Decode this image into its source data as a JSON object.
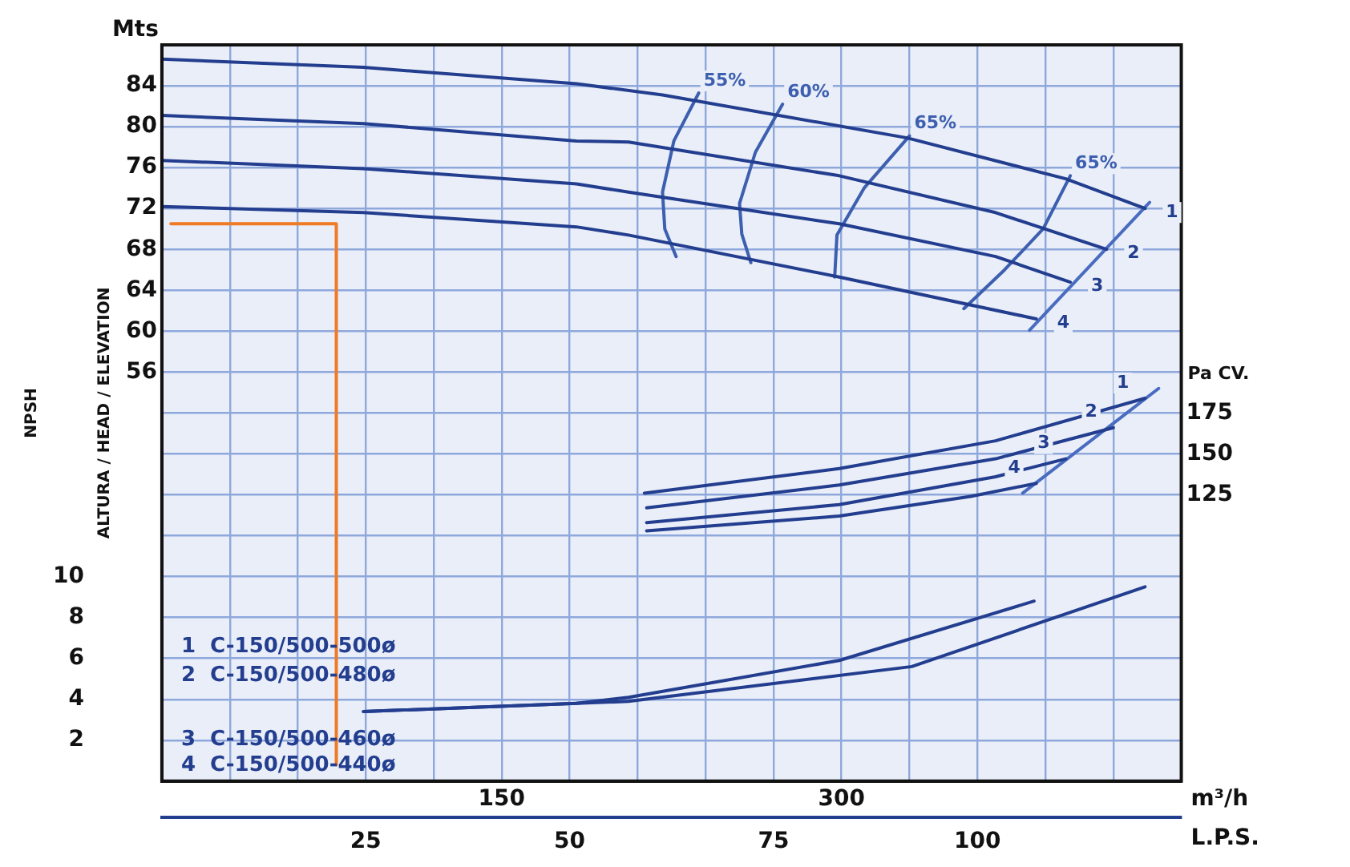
{
  "chart_data": {
    "type": "line",
    "ylabel": "ALTURA / HEAD / ELEVATION",
    "y2label": "Pa CV.",
    "y3label": "NPSH",
    "xlabel": "m³/h",
    "x2label": "L.P.S.",
    "xlim": [
      0,
      450
    ],
    "xticks": [
      {
        "value": 30,
        "label": null
      },
      {
        "value": 60,
        "label": null
      },
      {
        "value": 90,
        "label": null
      },
      {
        "value": 120,
        "label": null
      },
      150,
      {
        "value": 180,
        "label": null
      },
      {
        "value": 210,
        "label": null
      },
      {
        "value": 240,
        "label": null
      },
      {
        "value": 270,
        "label": null
      },
      300,
      {
        "value": 330,
        "label": null
      },
      {
        "value": 360,
        "label": null
      },
      {
        "value": 390,
        "label": null
      },
      {
        "value": 420,
        "label": null
      }
    ],
    "x2lim": [
      0,
      125
    ],
    "x2ticks": [
      25,
      50,
      75,
      100
    ],
    "ylim": [
      16,
      88
    ],
    "yticks": [
      {
        "value": 20,
        "label": null
      },
      {
        "value": 24,
        "label": null
      },
      {
        "value": 28,
        "label": null
      },
      {
        "value": 32,
        "label": null
      },
      {
        "value": 36,
        "label": null
      },
      {
        "value": 40,
        "label": null
      },
      {
        "value": 44,
        "label": null
      },
      {
        "value": 48,
        "label": null
      },
      {
        "value": 52,
        "label": null
      },
      56,
      60,
      64,
      68,
      72,
      76,
      80,
      84
    ],
    "y2lim": [
      -50,
      400
    ],
    "y2ticks": [
      125,
      150,
      175
    ],
    "y3lim": [
      0,
      36
    ],
    "y3ticks": [
      2,
      4,
      6,
      8,
      10
    ],
    "grid": true,
    "legend": false,
    "marker": "none",
    "annotations": [
      "Mts",
      "1  C-150/500-500ø",
      "2  C-150/500-480ø",
      "3  C-150/500-460ø",
      "4  C-150/500-440ø"
    ],
    "series": [
      {
        "name": "1",
        "color": "#233d8f",
        "x": [
          0,
          89,
          183,
          221,
          329,
          399,
          434
        ],
        "values": [
          86.6,
          85.8,
          84.2,
          83.1,
          78.9,
          74.9,
          72.0
        ]
      },
      {
        "name": "2",
        "color": "#233d8f",
        "x": [
          0,
          89,
          183,
          206,
          299,
          368,
          417
        ],
        "values": [
          81.1,
          80.3,
          78.6,
          78.5,
          75.2,
          71.6,
          68.0
        ]
      },
      {
        "name": "3",
        "color": "#233d8f",
        "x": [
          0,
          89,
          183,
          206,
          299,
          368,
          401
        ],
        "values": [
          76.7,
          75.9,
          74.4,
          73.6,
          70.5,
          67.3,
          64.8
        ]
      },
      {
        "name": "4",
        "color": "#233d8f",
        "x": [
          0,
          89,
          183,
          206,
          299,
          386
        ],
        "values": [
          72.2,
          71.6,
          70.2,
          69.4,
          65.3,
          61.2
        ]
      },
      {
        "name": "55%",
        "color": "#3d5fb0",
        "x": [
          237,
          226,
          221,
          222,
          227
        ],
        "values": [
          83.3,
          78.6,
          73.6,
          70.0,
          67.3
        ]
      },
      {
        "name": "60%",
        "color": "#3d5fb0",
        "x": [
          274,
          262,
          255,
          256,
          260
        ],
        "values": [
          82.2,
          77.5,
          72.5,
          69.5,
          66.7
        ]
      },
      {
        "name": "65%",
        "color": "#3d5fb0",
        "x": [
          330,
          310,
          298,
          297
        ],
        "values": [
          79.1,
          74.0,
          69.4,
          65.3
        ]
      },
      {
        "name": "65%",
        "color": "#3d5fb0",
        "x": [
          401,
          389,
          372,
          354
        ],
        "values": [
          75.2,
          70.0,
          66.0,
          62.2
        ]
      },
      {
        "color": "#4a6cc0",
        "x": [
          383,
          436
        ],
        "values": [
          60.1,
          72.6
        ]
      },
      {
        "name": "1",
        "axis": "y2",
        "color": "#233d8f",
        "x": [
          213,
          299,
          368,
          434
        ],
        "values": [
          126,
          141,
          158,
          184
        ]
      },
      {
        "name": "2",
        "axis": "y2",
        "color": "#233d8f",
        "x": [
          214,
          299,
          368,
          420
        ],
        "values": [
          117,
          131,
          147,
          166
        ]
      },
      {
        "name": "3",
        "axis": "y2",
        "color": "#233d8f",
        "x": [
          214,
          299,
          368,
          399
        ],
        "values": [
          108,
          119,
          136,
          147
        ]
      },
      {
        "name": "4",
        "axis": "y2",
        "color": "#233d8f",
        "x": [
          214,
          299,
          357,
          386
        ],
        "values": [
          103,
          112,
          124,
          132
        ]
      },
      {
        "axis": "y2",
        "color": "#4a6cc0",
        "x": [
          380,
          440
        ],
        "values": [
          126,
          190
        ]
      },
      {
        "axis": "y3",
        "color": "#233d8f",
        "x": [
          89,
          183,
          206,
          331,
          434
        ],
        "values": [
          3.4,
          3.8,
          3.9,
          5.6,
          9.5
        ]
      },
      {
        "axis": "y3",
        "color": "#233d8f",
        "x": [
          89,
          183,
          206,
          299,
          385
        ],
        "values": [
          3.4,
          3.8,
          4.1,
          5.9,
          8.8
        ]
      },
      {
        "color": "#f07a24",
        "x": [
          4,
          77,
          77
        ],
        "values": [
          70.5,
          70.5,
          17.6
        ]
      }
    ]
  }
}
